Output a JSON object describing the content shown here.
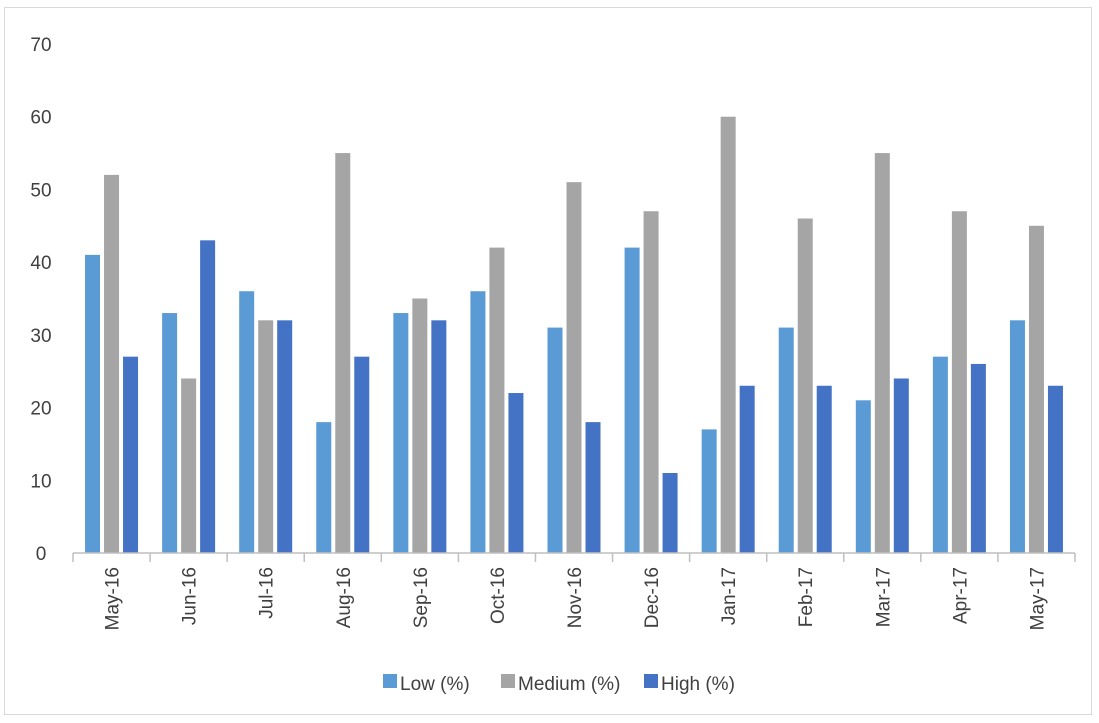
{
  "chart_data": {
    "type": "bar",
    "title": "",
    "xlabel": "",
    "ylabel": "",
    "ylim": [
      0,
      70
    ],
    "yticks": [
      "0",
      "10",
      "20",
      "30",
      "40",
      "50",
      "60",
      "70"
    ],
    "grid": false,
    "legend_position": "bottom",
    "categories": [
      "May-16",
      "Jun-16",
      "Jul-16",
      "Aug-16",
      "Sep-16",
      "Oct-16",
      "Nov-16",
      "Dec-16",
      "Jan-17",
      "Feb-17",
      "Mar-17",
      "Apr-17",
      "May-17"
    ],
    "series": [
      {
        "name": "Low (%)",
        "color": "#5b9bd5",
        "values": [
          41,
          33,
          36,
          18,
          33,
          36,
          31,
          42,
          17,
          31,
          21,
          27,
          32
        ]
      },
      {
        "name": "Medium (%)",
        "color": "#a5a5a5",
        "values": [
          52,
          24,
          32,
          55,
          35,
          42,
          51,
          47,
          60,
          46,
          55,
          47,
          45
        ]
      },
      {
        "name": "High (%)",
        "color": "#4472c4",
        "values": [
          27,
          43,
          32,
          27,
          32,
          22,
          18,
          11,
          23,
          23,
          24,
          26,
          23
        ]
      }
    ]
  }
}
